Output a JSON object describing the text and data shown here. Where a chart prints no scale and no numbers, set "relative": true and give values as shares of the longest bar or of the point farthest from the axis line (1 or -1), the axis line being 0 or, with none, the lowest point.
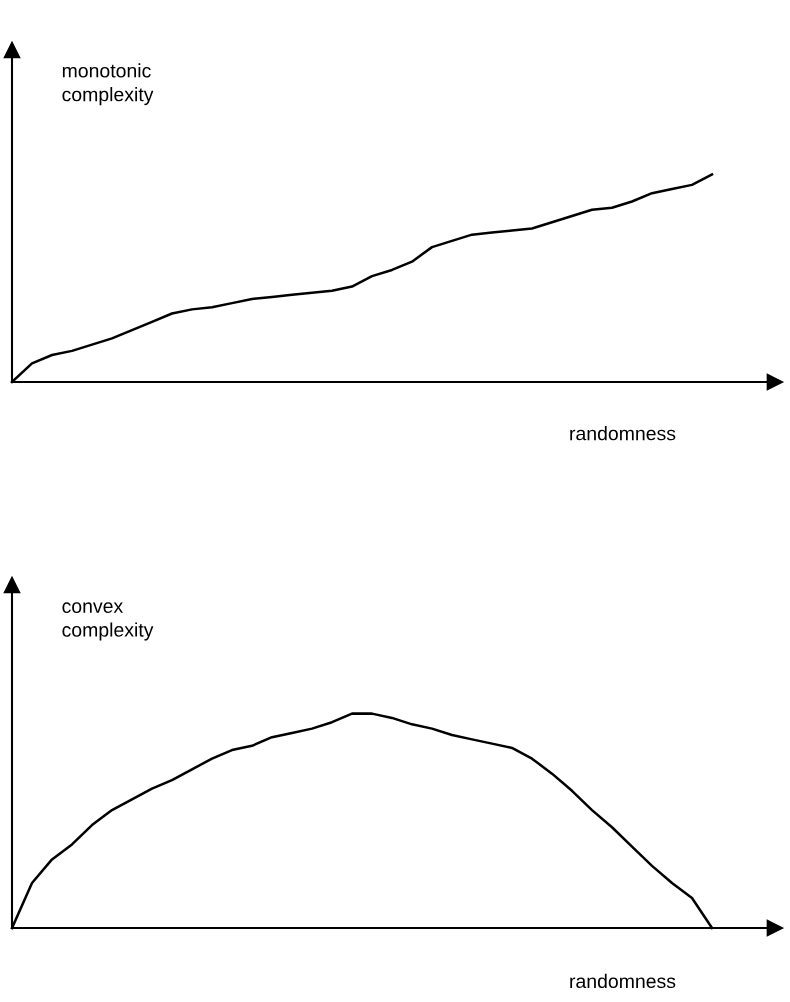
{
  "chart_data": [
    {
      "type": "line",
      "relative": true,
      "ylabel": "monotonic\ncomplexity",
      "xlabel": "randomness",
      "marker": "none",
      "line_style": "solid",
      "categories": [
        null,
        null,
        null,
        null,
        null,
        null,
        null,
        null,
        null,
        null,
        null,
        null,
        null,
        null,
        null,
        null,
        null,
        null,
        null,
        null,
        null,
        null,
        null,
        null,
        null,
        null,
        null,
        null,
        null,
        null,
        null,
        null,
        null,
        null,
        null,
        null
      ],
      "series": [
        {
          "color": "#000000",
          "values": [
            0,
            0.09,
            0.13,
            0.15,
            0.18,
            0.21,
            0.25,
            0.29,
            0.33,
            0.35,
            0.36,
            0.38,
            0.4,
            0.41,
            0.42,
            0.43,
            0.44,
            0.46,
            0.51,
            0.54,
            0.58,
            0.65,
            0.68,
            0.71,
            0.72,
            0.73,
            0.74,
            0.77,
            0.8,
            0.83,
            0.84,
            0.87,
            0.91,
            0.93,
            0.95,
            1
          ]
        }
      ]
    },
    {
      "type": "line",
      "relative": true,
      "ylabel": "convex\ncomplexity",
      "xlabel": "randomness",
      "marker": "none",
      "line_style": "solid",
      "categories": [
        null,
        null,
        null,
        null,
        null,
        null,
        null,
        null,
        null,
        null,
        null,
        null,
        null,
        null,
        null,
        null,
        null,
        null,
        null,
        null,
        null,
        null,
        null,
        null,
        null,
        null,
        null,
        null,
        null,
        null,
        null,
        null,
        null,
        null,
        null,
        null
      ],
      "series": [
        {
          "color": "#000000",
          "values": [
            0,
            0.21,
            0.32,
            0.39,
            0.48,
            0.55,
            0.6,
            0.65,
            0.69,
            0.74,
            0.79,
            0.83,
            0.85,
            0.89,
            0.91,
            0.93,
            0.96,
            1.0,
            1.0,
            0.98,
            0.95,
            0.93,
            0.9,
            0.88,
            0.86,
            0.84,
            0.79,
            0.72,
            0.64,
            0.55,
            0.47,
            0.38,
            0.29,
            0.21,
            0.14,
            0
          ]
        }
      ]
    }
  ]
}
